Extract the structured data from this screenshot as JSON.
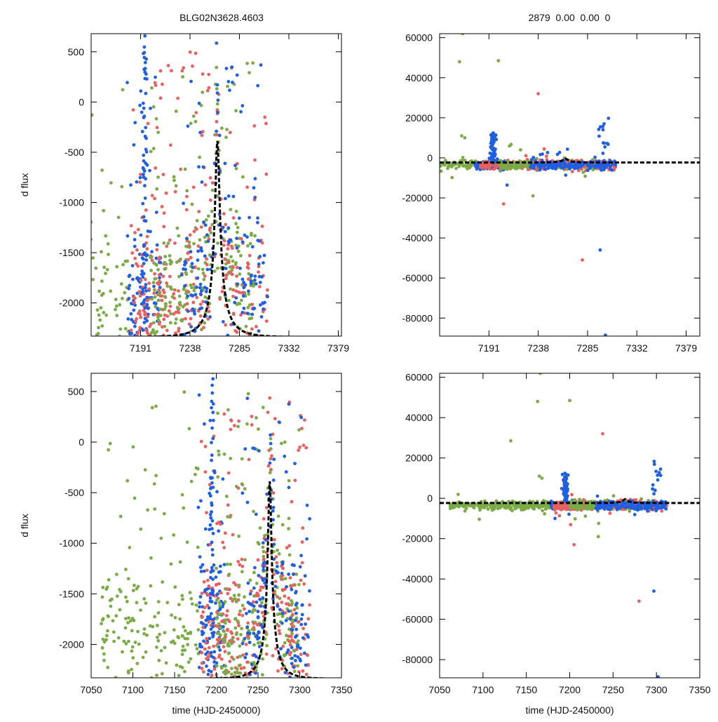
{
  "header": {
    "left_title": "BLG02N3628.4603",
    "right_title": "2879  0.00  0.00  0"
  },
  "series_colors": {
    "green": "#7aab46",
    "blue": "#1f5fe0",
    "red": "#e8605f",
    "model": "#000000"
  },
  "chart_data": [
    {
      "id": "top-left",
      "type": "scatter",
      "title": "BLG02N3628.4603",
      "xlabel": "",
      "ylabel": "d flux",
      "xlim": [
        7144,
        7382
      ],
      "ylim": [
        -2330,
        680
      ],
      "xticks": [
        7191,
        7238,
        7285,
        7332,
        7379
      ],
      "yticks": [
        -2000,
        -1500,
        -1000,
        -500,
        0,
        500
      ],
      "model": {
        "t0": 7264,
        "tE": 22,
        "u0": 0.1,
        "scale": 216,
        "base": -2340
      }
    },
    {
      "id": "top-right",
      "type": "scatter",
      "title": "2879  0.00  0.00  0",
      "xlabel": "",
      "ylabel": "",
      "xlim": [
        7144,
        7392
      ],
      "ylim": [
        -89000,
        62000
      ],
      "xticks": [
        7191,
        7238,
        7285,
        7332,
        7379
      ],
      "yticks": [
        -80000,
        -60000,
        -40000,
        -20000,
        0,
        20000,
        40000,
        60000
      ],
      "model": {
        "t0": 7264,
        "tE": 22,
        "u0": 0.1,
        "scale": 216,
        "base": -2340
      }
    },
    {
      "id": "bottom-left",
      "type": "scatter",
      "title": "",
      "xlabel": "time (HJD-2450000)",
      "ylabel": "d flux",
      "xlim": [
        7050,
        7350
      ],
      "ylim": [
        -2330,
        680
      ],
      "xticks": [
        7050,
        7100,
        7150,
        7200,
        7250,
        7300,
        7350
      ],
      "yticks": [
        -2000,
        -1500,
        -1000,
        -500,
        0,
        500
      ],
      "model": {
        "t0": 7264,
        "tE": 22,
        "u0": 0.1,
        "scale": 216,
        "base": -2340
      }
    },
    {
      "id": "bottom-right",
      "type": "scatter",
      "title": "",
      "xlabel": "time (HJD-2450000)",
      "ylabel": "",
      "xlim": [
        7050,
        7350
      ],
      "ylim": [
        -89000,
        62000
      ],
      "xticks": [
        7050,
        7100,
        7150,
        7200,
        7250,
        7300,
        7350
      ],
      "yticks": [
        -80000,
        -60000,
        -40000,
        -20000,
        0,
        20000,
        40000,
        60000
      ],
      "model": {
        "t0": 7264,
        "tE": 22,
        "u0": 0.1,
        "scale": 216,
        "base": -2340
      }
    }
  ]
}
